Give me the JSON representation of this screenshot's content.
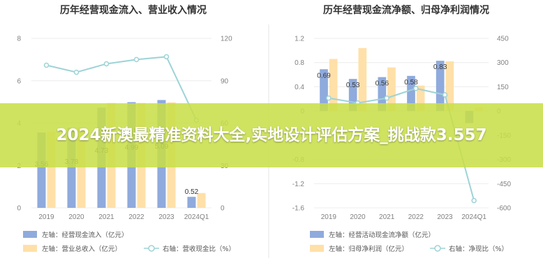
{
  "chart_data": [
    {
      "type": "bar",
      "title": "历年经营现金流入、营业收入情况",
      "categories": [
        "2019",
        "2020",
        "2021",
        "2022",
        "2023",
        "2024Q1"
      ],
      "series": [
        {
          "name": "左轴：经营现金流入（亿元）",
          "type": "bar",
          "axis": "left",
          "color": "#8faadc",
          "values": [
            3.56,
            3.78,
            4.73,
            4.99,
            5.09,
            0.52
          ],
          "labels": [
            "3.56",
            "3.78",
            "4.73",
            "4.99",
            "5.09",
            "0.52"
          ]
        },
        {
          "name": "左轴：营业总收入（亿元）",
          "type": "bar",
          "axis": "left",
          "color": "#ffe0a8",
          "values": [
            3.6,
            3.8,
            4.95,
            4.95,
            4.98,
            0.7
          ]
        },
        {
          "name": "右轴：营收现金比（%）",
          "type": "line",
          "axis": "right",
          "color": "#9ed3d6",
          "values": [
            101,
            96,
            102,
            105,
            107,
            62
          ]
        }
      ],
      "left_axis": {
        "range": [
          0,
          8
        ],
        "ticks": [
          0,
          2,
          4,
          6,
          8
        ]
      },
      "right_axis": {
        "range": [
          0,
          120
        ],
        "ticks": [
          0,
          30,
          60,
          90,
          120
        ]
      },
      "grid": true,
      "legend": "bottom"
    },
    {
      "type": "bar",
      "title": "历年经营现金流净额、归母净利润情况",
      "categories": [
        "2019",
        "2020",
        "2021",
        "2022",
        "2023",
        "2024Q1"
      ],
      "series": [
        {
          "name": "左轴：经营活动现金流净额（亿元）",
          "type": "bar",
          "axis": "left",
          "color": "#8faadc",
          "values": [
            0.69,
            0.53,
            0.56,
            0.58,
            0.83,
            -0.2
          ],
          "labels": [
            "0.69",
            "0.53",
            "0.56",
            "0.58",
            "0.83",
            ""
          ]
        },
        {
          "name": "左轴：归母净利润（亿元）",
          "type": "bar",
          "axis": "left",
          "color": "#ffe0a8",
          "values": [
            0.86,
            1.04,
            0.72,
            0.42,
            0.82,
            0.06
          ]
        },
        {
          "name": "右轴：净现比（%）",
          "type": "line",
          "axis": "right",
          "color": "#9ed3d6",
          "values": [
            80,
            50,
            80,
            140,
            100,
            -555
          ]
        }
      ],
      "left_axis": {
        "range": [
          -1.6,
          1.2
        ],
        "ticks": [
          -1.6,
          -1.2,
          -0.8,
          -0.4,
          0,
          0.4,
          0.8,
          1.2
        ]
      },
      "right_axis": {
        "range": [
          -600,
          450
        ],
        "ticks": [
          -600,
          -450,
          -300,
          -150,
          0,
          150,
          300,
          450
        ]
      },
      "grid": true,
      "legend": "bottom"
    }
  ],
  "banner": {
    "text": "2024新澳最精准资料大全,实地设计评估方案_挑战款3.557"
  }
}
